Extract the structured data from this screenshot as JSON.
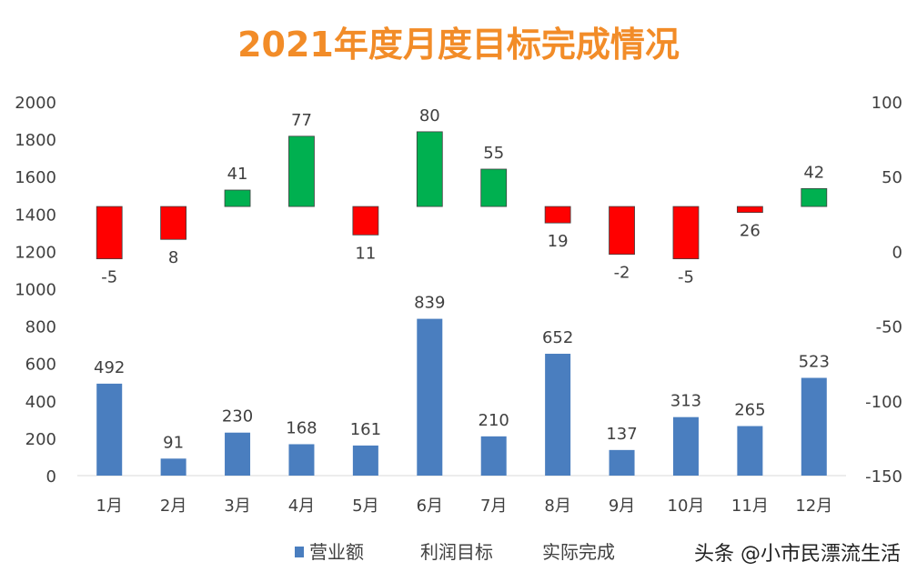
{
  "chart_data": {
    "type": "bar",
    "title": "2021年度月度目标完成情况",
    "categories": [
      "1月",
      "2月",
      "3月",
      "4月",
      "5月",
      "6月",
      "7月",
      "8月",
      "9月",
      "10月",
      "11月",
      "12月"
    ],
    "series": [
      {
        "name": "营业额",
        "axis": "left",
        "kind": "bar",
        "values": [
          492,
          91,
          230,
          168,
          161,
          839,
          210,
          652,
          137,
          313,
          265,
          523
        ],
        "labels": [
          "492",
          "91",
          "230",
          "168",
          "161",
          "839",
          "210",
          "652",
          "137",
          "313",
          "265",
          "523"
        ]
      },
      {
        "name": "利润目标",
        "axis": "right",
        "kind": "floating-bar-base",
        "values": [
          30,
          30,
          30,
          30,
          30,
          30,
          30,
          30,
          30,
          30,
          30,
          30
        ]
      },
      {
        "name": "实际完成",
        "axis": "right",
        "kind": "floating-bar-end",
        "values": [
          -5,
          8,
          41,
          77,
          11,
          80,
          55,
          19,
          -2,
          -5,
          26,
          42
        ],
        "labels": [
          "-5",
          "8",
          "41",
          "77",
          "11",
          "80",
          "55",
          "19",
          "-2",
          "-5",
          "26",
          "42"
        ]
      }
    ],
    "y_left": {
      "min": 0,
      "max": 2000,
      "ticks": [
        "0",
        "200",
        "400",
        "600",
        "800",
        "1000",
        "1200",
        "1400",
        "1600",
        "1800",
        "2000"
      ]
    },
    "y_right": {
      "min": -150,
      "max": 100,
      "ticks": [
        "-150",
        "-100",
        "-50",
        "0",
        "50",
        "100"
      ]
    },
    "grid": false,
    "legend_position": "bottom"
  },
  "colors": {
    "title": "#f28c28",
    "bar": "#4a7ebf",
    "above_target": "#00b050",
    "below_target": "#ff0000",
    "text": "#404040"
  },
  "watermark": "头条 @小市民漂流生活"
}
